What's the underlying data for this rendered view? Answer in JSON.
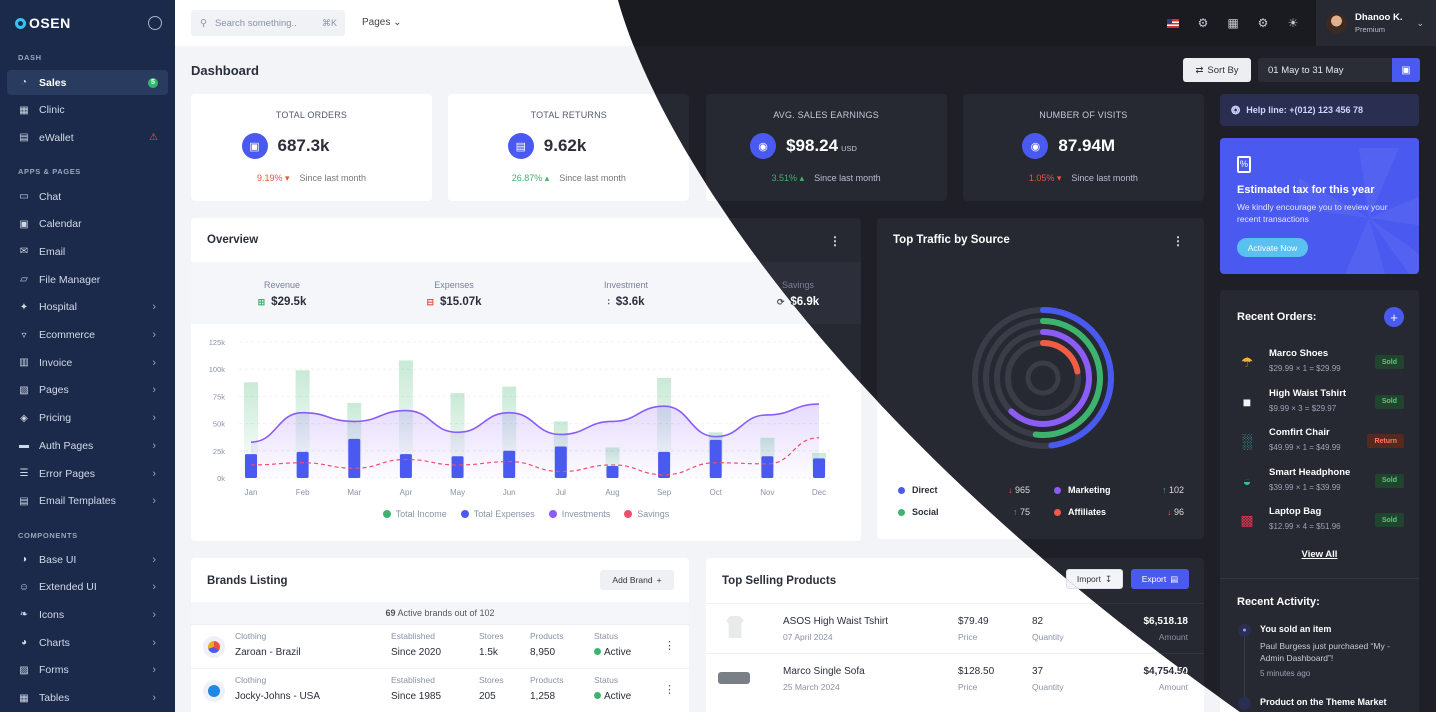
{
  "app": {
    "logo_text": "OSEN"
  },
  "sidebar": {
    "sections": [
      "DASH",
      "APPS & PAGES",
      "COMPONENTS"
    ],
    "dash_items": [
      {
        "label": "Sales",
        "icon": "speedometer-icon",
        "badge": "5"
      },
      {
        "label": "Clinic",
        "icon": "building-icon"
      },
      {
        "label": "eWallet",
        "icon": "wallet-icon",
        "alert": "⚠"
      }
    ],
    "app_items": [
      {
        "label": "Chat",
        "icon": "chat-icon"
      },
      {
        "label": "Calendar",
        "icon": "calendar-icon"
      },
      {
        "label": "Email",
        "icon": "mail-icon"
      },
      {
        "label": "File Manager",
        "icon": "folder-icon"
      },
      {
        "label": "Hospital",
        "icon": "hospital-icon"
      },
      {
        "label": "Ecommerce",
        "icon": "basket-icon"
      },
      {
        "label": "Invoice",
        "icon": "invoice-icon"
      },
      {
        "label": "Pages",
        "icon": "pages-icon"
      },
      {
        "label": "Pricing",
        "icon": "price-tag-icon"
      },
      {
        "label": "Auth Pages",
        "icon": "lock-icon"
      },
      {
        "label": "Error Pages",
        "icon": "server-icon"
      },
      {
        "label": "Email Templates",
        "icon": "template-icon"
      }
    ],
    "component_items": [
      {
        "label": "Base UI",
        "icon": "circle-half-icon"
      },
      {
        "label": "Extended UI",
        "icon": "smiley-icon"
      },
      {
        "label": "Icons",
        "icon": "feather-icon"
      },
      {
        "label": "Charts",
        "icon": "pie-chart-icon"
      },
      {
        "label": "Forms",
        "icon": "form-icon"
      },
      {
        "label": "Tables",
        "icon": "table-icon"
      }
    ]
  },
  "topbar": {
    "search_placeholder": "Search something..",
    "search_shortcut": "⌘K",
    "pages_menu": "Pages",
    "user_name": "Dhanoo K.",
    "user_role": "Premium"
  },
  "page": {
    "title": "Dashboard",
    "sort_label": "Sort By",
    "date_range": "01 May to 31 May"
  },
  "stats": [
    {
      "label": "TOTAL ORDERS",
      "value": "687.3k",
      "unit": "",
      "change": "9.19%",
      "direction": "down",
      "note": "Since last month"
    },
    {
      "label": "TOTAL RETURNS",
      "value": "9.62k",
      "unit": "",
      "change": "26.87%",
      "direction": "up",
      "note": "Since last month"
    },
    {
      "label": "AVG. SALES EARNINGS",
      "value": "$98.24",
      "unit": "USD",
      "change": "3.51%",
      "direction": "up",
      "note": "Since last month"
    },
    {
      "label": "NUMBER OF VISITS",
      "value": "87.94M",
      "unit": "",
      "change": "1.05%",
      "direction": "down",
      "note": "Since last month"
    }
  ],
  "overview": {
    "title": "Overview",
    "summary": [
      {
        "label": "Revenue",
        "value": "$29.5k"
      },
      {
        "label": "Expenses",
        "value": "$15.07k"
      },
      {
        "label": "Investment",
        "value": "$3.6k"
      },
      {
        "label": "Savings",
        "value": "$6.9k"
      }
    ]
  },
  "chart_data": {
    "type": "bar",
    "categories": [
      "Jan",
      "Feb",
      "Mar",
      "Apr",
      "May",
      "Jun",
      "Jul",
      "Aug",
      "Sep",
      "Oct",
      "Nov",
      "Dec"
    ],
    "ylim": [
      0,
      125000
    ],
    "yticks": [
      "0k",
      "25k",
      "50k",
      "75k",
      "100k",
      "125k"
    ],
    "series": [
      {
        "name": "Total Income",
        "kind": "bar",
        "color": "#3cb46e",
        "values": [
          88000,
          99000,
          69000,
          108000,
          78000,
          84000,
          52000,
          28000,
          92000,
          42000,
          37000,
          23000
        ]
      },
      {
        "name": "Total Expenses",
        "kind": "bar",
        "color": "#4a5af0",
        "values": [
          22000,
          24000,
          36000,
          22000,
          20000,
          25000,
          29000,
          11000,
          24000,
          35000,
          20000,
          18000
        ]
      },
      {
        "name": "Investments",
        "kind": "line",
        "color": "#8b5cf6",
        "values": [
          33000,
          60000,
          52000,
          62000,
          42000,
          60000,
          40000,
          52000,
          66000,
          38000,
          58000,
          68000
        ]
      },
      {
        "name": "Savings",
        "kind": "dashed",
        "color": "#ef4d6e",
        "values": [
          12000,
          14000,
          9000,
          17000,
          12000,
          15000,
          6000,
          12000,
          3000,
          14000,
          13000,
          37000
        ]
      }
    ]
  },
  "traffic": {
    "title": "Top Traffic by Source",
    "items": [
      {
        "label": "Direct",
        "value": "965",
        "color": "#4a5af0",
        "direction": "down",
        "fraction": 0.48
      },
      {
        "label": "Marketing",
        "value": "102",
        "color": "#8b5cf6",
        "direction": "up",
        "fraction": 0.62
      },
      {
        "label": "Social",
        "value": "75",
        "color": "#3cb46e",
        "direction": "up",
        "fraction": 0.52
      },
      {
        "label": "Affiliates",
        "value": "96",
        "color": "#f05c44",
        "direction": "down",
        "fraction": 0.22
      }
    ]
  },
  "help": {
    "text": "Help line:  +(012) 123 456 78"
  },
  "tax": {
    "title": "Estimated tax for this year",
    "desc": "We kindly encourage you to review your recent transactions",
    "button": "Activate Now"
  },
  "orders": {
    "title": "Recent Orders:",
    "view_all": "View All",
    "items": [
      {
        "name": "Marco Shoes",
        "sub": "$29.99 × 1 = $29.99",
        "status": "Sold",
        "icon": "shoe-icon"
      },
      {
        "name": "High Waist Tshirt",
        "sub": "$9.99 × 3 = $29.97",
        "status": "Sold",
        "icon": "tshirt-icon"
      },
      {
        "name": "Comfirt Chair",
        "sub": "$49.99 × 1 = $49.99",
        "status": "Return",
        "icon": "chair-icon"
      },
      {
        "name": "Smart Headphone",
        "sub": "$39.99 × 1 = $39.99",
        "status": "Sold",
        "icon": "headphone-icon"
      },
      {
        "name": "Laptop Bag",
        "sub": "$12.99 × 4 = $51.96",
        "status": "Sold",
        "icon": "bag-icon"
      }
    ]
  },
  "activity": {
    "title": "Recent Activity:",
    "items": [
      {
        "title": "You sold an item",
        "desc": "Paul Burgess just purchased “My - Admin Dashboard”!",
        "time": "5 minutes ago"
      },
      {
        "title": "Product on the Theme Market",
        "desc": "",
        "time": ""
      }
    ]
  },
  "brands": {
    "title": "Brands Listing",
    "add_button": "Add Brand",
    "count_text": "69",
    "count_suffix": "Active brands out of 102",
    "columns": [
      "Established",
      "Stores",
      "Products",
      "Status"
    ],
    "rows": [
      {
        "category": "Clothing",
        "name": "Zaroan - Brazil",
        "established": "Since 2020",
        "stores": "1.5k",
        "products": "8,950",
        "status": "Active"
      },
      {
        "category": "Clothing",
        "name": "Jocky-Johns - USA",
        "established": "Since 1985",
        "stores": "205",
        "products": "1,258",
        "status": "Active"
      }
    ]
  },
  "top_selling": {
    "title": "Top Selling Products",
    "import": "Import",
    "export": "Export",
    "price_label": "Price",
    "qty_label": "Quantity",
    "amount_label": "Amount",
    "rows": [
      {
        "name": "ASOS High Waist Tshirt",
        "date": "07 April 2024",
        "price": "$79.49",
        "qty": "82",
        "amount": "$6,518.18"
      },
      {
        "name": "Marco Single Sofa",
        "date": "25 March 2024",
        "price": "$128.50",
        "qty": "37",
        "amount": "$4,754.50"
      }
    ]
  }
}
